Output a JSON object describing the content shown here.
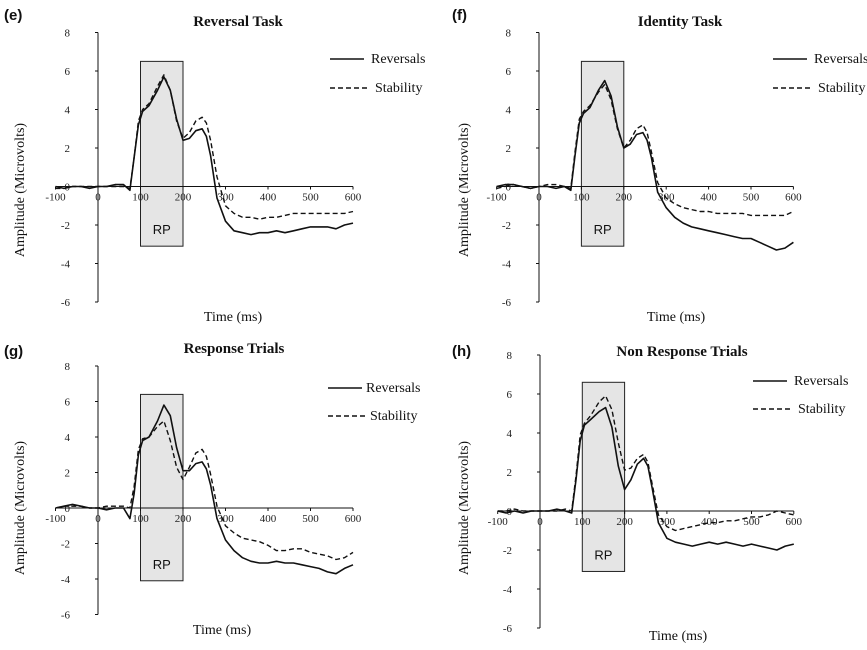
{
  "chart_data": [
    {
      "panel_label": "(e)",
      "type": "line",
      "title": "Reversal Task",
      "xlabel": "Time (ms)",
      "ylabel": "Amplitude (Microvolts)",
      "xlim": [
        -100,
        600
      ],
      "ylim": [
        -6,
        8
      ],
      "x_ticks": [
        "-100",
        "0",
        "100",
        "200",
        "300",
        "400",
        "500",
        "600"
      ],
      "y_ticks": [
        "8",
        "6",
        "4",
        "2",
        "0",
        "-2",
        "-4",
        "-6"
      ],
      "grid": false,
      "legend": "top-right",
      "shaded_region": {
        "label": "RP",
        "x": [
          100,
          200
        ],
        "y": [
          -3.1,
          6.5
        ],
        "color": "#e5e5e5"
      },
      "series": [
        {
          "name": "Reversals",
          "style": "solid",
          "color": "#111111",
          "x": [
            -100,
            -80,
            -60,
            -40,
            -20,
            0,
            20,
            40,
            60,
            75,
            85,
            95,
            105,
            120,
            140,
            155,
            170,
            185,
            200,
            215,
            230,
            245,
            255,
            265,
            280,
            300,
            320,
            340,
            360,
            380,
            400,
            420,
            440,
            460,
            480,
            500,
            520,
            540,
            560,
            580,
            600
          ],
          "y": [
            0.0,
            -0.1,
            0.0,
            0.0,
            -0.1,
            0.0,
            0.0,
            0.1,
            0.1,
            -0.2,
            1.5,
            3.2,
            3.9,
            4.2,
            5.0,
            5.7,
            5.0,
            3.5,
            2.4,
            2.5,
            2.9,
            3.0,
            2.6,
            1.6,
            -0.6,
            -1.8,
            -2.3,
            -2.4,
            -2.5,
            -2.4,
            -2.4,
            -2.3,
            -2.4,
            -2.3,
            -2.2,
            -2.1,
            -2.1,
            -2.1,
            -2.2,
            -2.0,
            -1.9
          ]
        },
        {
          "name": "Stability",
          "style": "dashed",
          "color": "#111111",
          "x": [
            -100,
            -80,
            -60,
            -40,
            -20,
            0,
            20,
            40,
            60,
            75,
            85,
            95,
            105,
            120,
            140,
            155,
            170,
            185,
            200,
            215,
            230,
            245,
            255,
            265,
            280,
            300,
            320,
            340,
            360,
            380,
            400,
            420,
            440,
            460,
            480,
            500,
            520,
            540,
            560,
            580,
            600
          ],
          "y": [
            -0.1,
            -0.1,
            0.0,
            0.0,
            0.0,
            0.0,
            0.0,
            0.0,
            0.0,
            -0.1,
            1.5,
            3.4,
            4.0,
            4.3,
            5.2,
            5.8,
            5.0,
            3.4,
            2.5,
            2.8,
            3.4,
            3.6,
            3.3,
            2.4,
            0.5,
            -1.0,
            -1.4,
            -1.6,
            -1.6,
            -1.7,
            -1.6,
            -1.6,
            -1.5,
            -1.4,
            -1.4,
            -1.4,
            -1.4,
            -1.4,
            -1.4,
            -1.4,
            -1.3
          ]
        }
      ]
    },
    {
      "panel_label": "(f)",
      "type": "line",
      "title": "Identity Task",
      "xlabel": "Time (ms)",
      "ylabel": "Amplitude (Microvolts)",
      "xlim": [
        -100,
        600
      ],
      "ylim": [
        -6,
        8
      ],
      "x_ticks": [
        "-100",
        "0",
        "100",
        "200",
        "300",
        "400",
        "500",
        "600"
      ],
      "y_ticks": [
        "8",
        "6",
        "4",
        "2",
        "0",
        "-2",
        "-4",
        "-6"
      ],
      "grid": false,
      "legend": "top-right",
      "shaded_region": {
        "label": "RP",
        "x": [
          100,
          200
        ],
        "y": [
          -3.1,
          6.5
        ],
        "color": "#e5e5e5"
      },
      "series": [
        {
          "name": "Reversals",
          "style": "solid",
          "color": "#111111",
          "x": [
            -100,
            -80,
            -60,
            -40,
            -20,
            0,
            20,
            40,
            60,
            75,
            85,
            95,
            105,
            120,
            140,
            155,
            170,
            185,
            200,
            215,
            230,
            245,
            255,
            265,
            280,
            300,
            320,
            340,
            360,
            380,
            400,
            420,
            440,
            460,
            480,
            500,
            520,
            540,
            560,
            580,
            600
          ],
          "y": [
            0.0,
            0.1,
            0.1,
            0.0,
            -0.1,
            0.0,
            0.0,
            -0.1,
            0.0,
            -0.2,
            1.6,
            3.3,
            3.8,
            4.1,
            5.0,
            5.5,
            4.7,
            3.1,
            2.0,
            2.2,
            2.7,
            2.8,
            2.4,
            1.5,
            -0.3,
            -1.1,
            -1.6,
            -1.9,
            -2.1,
            -2.2,
            -2.3,
            -2.4,
            -2.5,
            -2.6,
            -2.7,
            -2.7,
            -2.9,
            -3.1,
            -3.3,
            -3.2,
            -2.9
          ]
        },
        {
          "name": "Stability",
          "style": "dashed",
          "color": "#111111",
          "x": [
            -100,
            -80,
            -60,
            -40,
            -20,
            0,
            20,
            40,
            60,
            75,
            85,
            95,
            105,
            120,
            140,
            155,
            170,
            185,
            200,
            215,
            230,
            245,
            255,
            265,
            280,
            300,
            320,
            340,
            360,
            380,
            400,
            420,
            440,
            460,
            480,
            500,
            520,
            540,
            560,
            580,
            600
          ],
          "y": [
            -0.1,
            0.0,
            0.1,
            0.0,
            -0.1,
            0.0,
            0.1,
            0.1,
            0.0,
            -0.1,
            1.8,
            3.5,
            3.9,
            4.2,
            4.9,
            5.3,
            4.5,
            3.0,
            2.0,
            2.4,
            3.0,
            3.2,
            2.8,
            1.8,
            0.2,
            -0.6,
            -0.9,
            -1.1,
            -1.2,
            -1.3,
            -1.3,
            -1.4,
            -1.4,
            -1.4,
            -1.4,
            -1.5,
            -1.5,
            -1.5,
            -1.5,
            -1.5,
            -1.3
          ]
        }
      ]
    },
    {
      "panel_label": "(g)",
      "type": "line",
      "title": "Response Trials",
      "xlabel": "Time (ms)",
      "ylabel": "Amplitude (Microvolts)",
      "xlim": [
        -100,
        600
      ],
      "ylim": [
        -6,
        8
      ],
      "x_ticks": [
        "-100",
        "0",
        "100",
        "200",
        "300",
        "400",
        "500",
        "600"
      ],
      "y_ticks": [
        "8",
        "6",
        "4",
        "2",
        "0",
        "-2",
        "-4",
        "-6"
      ],
      "grid": false,
      "legend": "top-right",
      "shaded_region": {
        "label": "RP",
        "x": [
          100,
          200
        ],
        "y": [
          -4.1,
          6.4
        ],
        "color": "#e5e5e5"
      },
      "series": [
        {
          "name": "Reversals",
          "style": "solid",
          "color": "#111111",
          "x": [
            -100,
            -80,
            -60,
            -40,
            -20,
            0,
            20,
            40,
            60,
            75,
            85,
            95,
            105,
            120,
            140,
            155,
            170,
            185,
            200,
            215,
            230,
            245,
            255,
            265,
            280,
            300,
            320,
            340,
            360,
            380,
            400,
            420,
            440,
            460,
            480,
            500,
            520,
            540,
            560,
            580,
            600
          ],
          "y": [
            0.0,
            0.1,
            0.2,
            0.1,
            0.0,
            0.0,
            -0.1,
            0.0,
            0.0,
            -0.6,
            0.8,
            3.0,
            3.8,
            4.0,
            4.9,
            5.8,
            5.2,
            3.4,
            2.1,
            2.1,
            2.5,
            2.6,
            2.2,
            1.3,
            -0.6,
            -1.8,
            -2.4,
            -2.8,
            -3.0,
            -3.1,
            -3.1,
            -3.0,
            -3.1,
            -3.1,
            -3.2,
            -3.3,
            -3.4,
            -3.6,
            -3.7,
            -3.4,
            -3.2
          ]
        },
        {
          "name": "Stability",
          "style": "dashed",
          "color": "#111111",
          "x": [
            -100,
            -80,
            -60,
            -40,
            -20,
            0,
            20,
            40,
            60,
            75,
            85,
            95,
            105,
            120,
            140,
            155,
            170,
            185,
            200,
            215,
            230,
            245,
            255,
            265,
            280,
            300,
            320,
            340,
            360,
            380,
            400,
            420,
            440,
            460,
            480,
            500,
            520,
            540,
            560,
            580,
            600
          ],
          "y": [
            0.0,
            0.1,
            0.1,
            0.1,
            0.0,
            0.0,
            0.1,
            0.1,
            0.1,
            0.0,
            1.2,
            3.3,
            3.9,
            4.0,
            4.6,
            4.9,
            3.8,
            2.3,
            1.6,
            2.3,
            3.1,
            3.3,
            2.9,
            1.9,
            0.1,
            -1.0,
            -1.4,
            -1.7,
            -1.8,
            -1.9,
            -2.1,
            -2.4,
            -2.4,
            -2.3,
            -2.3,
            -2.5,
            -2.6,
            -2.7,
            -2.9,
            -2.8,
            -2.5
          ]
        }
      ]
    },
    {
      "panel_label": "(h)",
      "type": "line",
      "title": "Non Response Trials",
      "xlabel": "Time (ms)",
      "ylabel": "Amplitude (Microvolts)",
      "xlim": [
        -100,
        600
      ],
      "ylim": [
        -6,
        8
      ],
      "x_ticks": [
        "-100",
        "0",
        "100",
        "200",
        "300",
        "400",
        "500",
        "600"
      ],
      "y_ticks": [
        "8",
        "6",
        "4",
        "2",
        "0",
        "-2",
        "-4",
        "-6"
      ],
      "grid": false,
      "legend": "top-right",
      "shaded_region": {
        "label": "RP",
        "x": [
          100,
          200
        ],
        "y": [
          -3.1,
          6.6
        ],
        "color": "#e5e5e5"
      },
      "series": [
        {
          "name": "Reversals",
          "style": "solid",
          "color": "#111111",
          "x": [
            -100,
            -80,
            -60,
            -40,
            -20,
            0,
            20,
            40,
            60,
            75,
            85,
            95,
            105,
            120,
            140,
            155,
            170,
            185,
            200,
            215,
            230,
            245,
            255,
            265,
            280,
            300,
            320,
            340,
            360,
            380,
            400,
            420,
            440,
            460,
            480,
            500,
            520,
            540,
            560,
            580,
            600
          ],
          "y": [
            0.0,
            -0.1,
            0.0,
            -0.1,
            0.0,
            0.0,
            0.0,
            0.1,
            0.0,
            -0.1,
            1.6,
            3.6,
            4.4,
            4.7,
            5.1,
            5.3,
            4.3,
            2.3,
            1.1,
            1.6,
            2.4,
            2.7,
            2.3,
            1.2,
            -0.6,
            -1.4,
            -1.6,
            -1.7,
            -1.8,
            -1.7,
            -1.6,
            -1.7,
            -1.6,
            -1.7,
            -1.8,
            -1.7,
            -1.8,
            -1.9,
            -2.0,
            -1.8,
            -1.7
          ]
        },
        {
          "name": "Stability",
          "style": "dashed",
          "color": "#111111",
          "x": [
            -100,
            -80,
            -60,
            -40,
            -20,
            0,
            20,
            40,
            60,
            75,
            85,
            95,
            105,
            120,
            140,
            155,
            170,
            185,
            200,
            215,
            230,
            245,
            255,
            265,
            280,
            300,
            320,
            340,
            360,
            380,
            400,
            420,
            440,
            460,
            480,
            500,
            520,
            540,
            560,
            580,
            600
          ],
          "y": [
            0.0,
            0.0,
            0.1,
            0.0,
            0.0,
            0.0,
            0.0,
            0.0,
            0.1,
            0.0,
            1.8,
            3.9,
            4.5,
            4.9,
            5.6,
            5.9,
            5.2,
            3.5,
            2.1,
            2.2,
            2.7,
            2.9,
            2.5,
            1.4,
            -0.2,
            -0.8,
            -1.0,
            -0.9,
            -0.8,
            -0.7,
            -0.6,
            -0.6,
            -0.5,
            -0.5,
            -0.4,
            -0.3,
            -0.3,
            -0.2,
            0.0,
            -0.1,
            -0.2
          ]
        }
      ]
    }
  ]
}
